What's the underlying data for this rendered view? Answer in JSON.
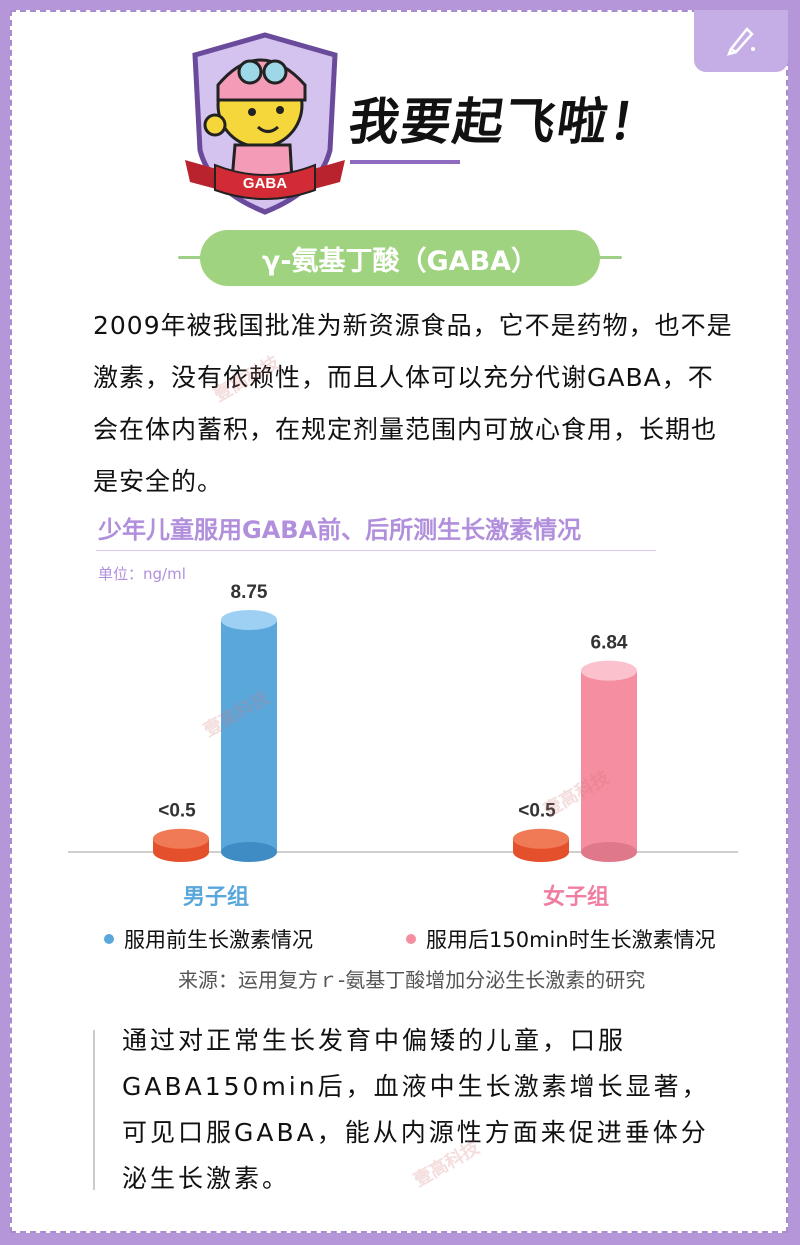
{
  "badge_text": "GABA",
  "slogan": "我要起飞啦！",
  "pill_title": "γ-氨基丁酸（GABA）",
  "paragraph1": "2009年被我国批准为新资源食品，它不是药物，也不是激素，没有依赖性，而且人体可以充分代谢GABA，不会在体内蓄积，在规定剂量范围内可放心食用，长期也是安全的。",
  "chart_title": "少年儿童服用GABA前、后所测生长激素情况",
  "unit_label": "单位：ng/ml",
  "legend": {
    "before": "服用前生长激素情况",
    "after": "服用后150min时生长激素情况"
  },
  "source": "来源：运用复方ｒ-氨基丁酸增加分泌生长激素的研究",
  "paragraph2": "通过对正常生长发育中偏矮的儿童，口服GABA150min后，血液中生长激素增长显著，可见口服GABA，能从内源性方面来促进垂体分泌生长激素。",
  "watermark": "壹高科技",
  "colors": {
    "background": "#b596d9",
    "accent_purple": "#b18fdc",
    "pill_green": "#9fd37f",
    "before_red": "#f0633e",
    "male_blue": "#5aa7dc",
    "female_pink": "#f48ea0"
  },
  "chart_data": {
    "type": "bar",
    "title": "少年儿童服用GABA前、后所测生长激素情况",
    "ylabel": "单位：ng/ml",
    "categories": [
      "男子组",
      "女子组"
    ],
    "series": [
      {
        "name": "服用前生长激素情况",
        "labels": [
          "<0.5",
          "<0.5"
        ],
        "values": [
          0.5,
          0.5
        ]
      },
      {
        "name": "服用后150min时生长激素情况",
        "labels": [
          "8.75",
          "6.84"
        ],
        "values": [
          8.75,
          6.84
        ]
      }
    ],
    "ylim": [
      0,
      9
    ]
  }
}
